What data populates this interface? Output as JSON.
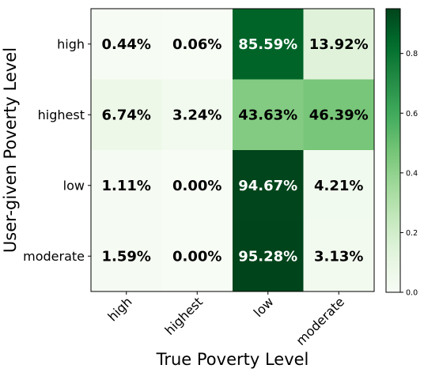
{
  "chart_data": {
    "type": "heatmap",
    "title": "",
    "xlabel": "True Poverty Level",
    "ylabel": "User-given Poverty Level",
    "x_categories": [
      "high",
      "highest",
      "low",
      "moderate"
    ],
    "y_categories": [
      "high",
      "highest",
      "low",
      "moderate"
    ],
    "values": [
      [
        0.0044,
        0.0006,
        0.8559,
        0.1392
      ],
      [
        0.0674,
        0.0324,
        0.4363,
        0.4639
      ],
      [
        0.0111,
        0.0,
        0.9467,
        0.0421
      ],
      [
        0.0159,
        0.0,
        0.9528,
        0.0313
      ]
    ],
    "cell_labels": [
      [
        "0.44%",
        "0.06%",
        "85.59%",
        "13.92%"
      ],
      [
        "6.74%",
        "3.24%",
        "43.63%",
        "46.39%"
      ],
      [
        "1.11%",
        "0.00%",
        "94.67%",
        "4.21%"
      ],
      [
        "1.59%",
        "0.00%",
        "95.28%",
        "3.13%"
      ]
    ],
    "colormap": "Greens",
    "color_range": [
      0.0,
      0.95
    ],
    "colorbar": {
      "ticks": [
        0.0,
        0.2,
        0.4,
        0.6,
        0.8
      ],
      "tick_labels": [
        "0.0",
        "0.2",
        "0.4",
        "0.6",
        "0.8"
      ]
    },
    "x_tick_rotation_deg": 45,
    "grid": false,
    "legend": "colorbar-right"
  }
}
